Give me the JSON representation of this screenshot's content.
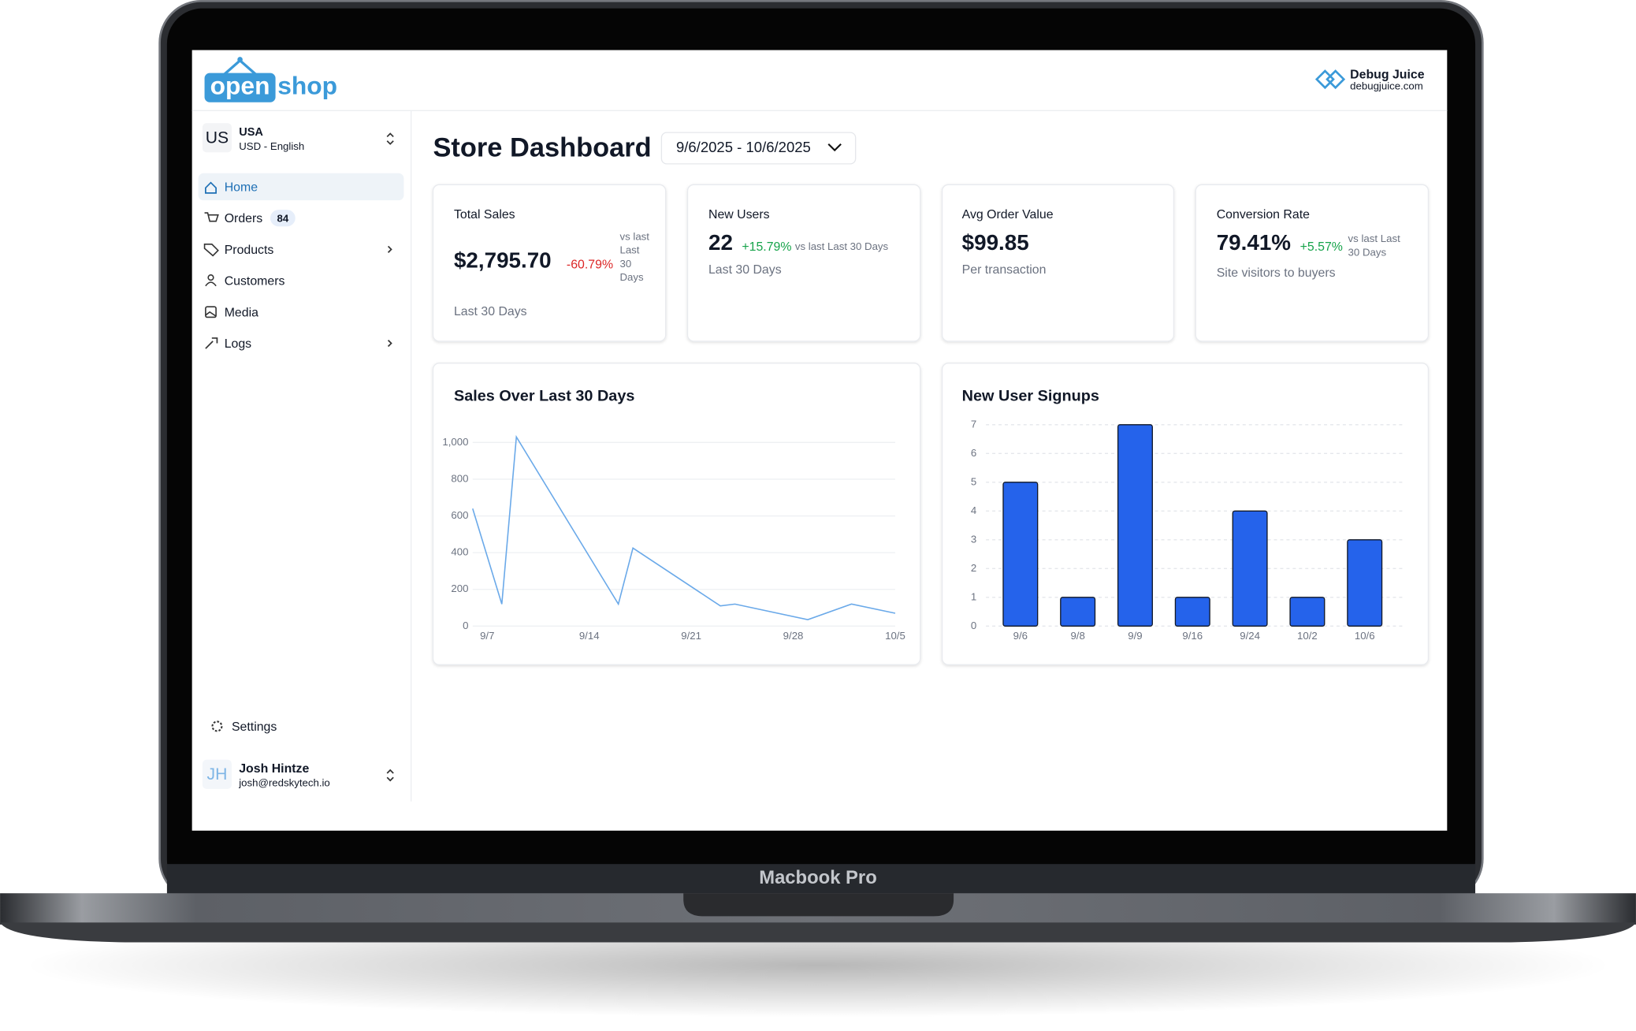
{
  "logo": {
    "open": "open",
    "shop": "shop"
  },
  "brand": {
    "name": "Debug Juice",
    "url": "debugjuice.com"
  },
  "locale": {
    "code": "US",
    "country": "USA",
    "currency": "USD - English"
  },
  "nav": [
    {
      "label": "Home"
    },
    {
      "label": "Orders",
      "badge": 84
    },
    {
      "label": "Products"
    },
    {
      "label": "Customers"
    },
    {
      "label": "Media"
    },
    {
      "label": "Logs"
    }
  ],
  "settings": "Settings",
  "user": {
    "initials": "JH",
    "name": "Josh Hintze",
    "email": "josh@redskytech.io"
  },
  "page_title": "Store Dashboard",
  "date_range": "9/6/2025 - 10/6/2025",
  "cards": [
    {
      "title": "Total Sales",
      "value": "$2,795.70",
      "change": "-60.79%",
      "comparison": "vs last Last 30 Days",
      "footer": "Last 30 Days"
    },
    {
      "title": "New Users",
      "value": "22",
      "change": "+15.79%",
      "comparison": "vs last Last 30 Days",
      "footer": "Last 30 Days"
    },
    {
      "title": "Avg Order Value",
      "value": "$99.85",
      "footer": "Per transaction"
    },
    {
      "title": "Conversion Rate",
      "value": "79.41%",
      "change": "+5.57%",
      "comparison": "vs last Last 30 Days",
      "footer": "Site visitors to buyers"
    }
  ],
  "device_label": "Macbook Pro",
  "chart_data": [
    {
      "type": "line",
      "title": "Sales Over Last 30 Days",
      "color": "#6aa9e9",
      "x": [
        "9/6",
        "9/8",
        "9/9",
        "9/16",
        "9/17",
        "9/23",
        "9/24",
        "9/29",
        "10/2",
        "10/5"
      ],
      "values": [
        640,
        120,
        1030,
        120,
        425,
        110,
        120,
        35,
        120,
        70
      ],
      "xlim": [
        "9/6",
        "10/5"
      ],
      "xticks": [
        "9/7",
        "9/14",
        "9/21",
        "9/28",
        "10/5"
      ],
      "ylim": [
        0,
        1000
      ],
      "yticks": [
        0,
        200,
        400,
        600,
        800,
        {
          "value": 1000,
          "label": "1,000"
        }
      ],
      "grid": true
    },
    {
      "type": "bar",
      "title": "New User Signups",
      "color": "#2563eb",
      "categories": [
        "9/6",
        "9/8",
        "9/9",
        "9/16",
        "9/24",
        "10/2",
        "10/6"
      ],
      "values": [
        5,
        1,
        7,
        1,
        4,
        1,
        3
      ],
      "ylim": [
        0,
        7
      ],
      "yticks": [
        0,
        1,
        2,
        3,
        4,
        5,
        6,
        7
      ],
      "grid": true
    }
  ]
}
